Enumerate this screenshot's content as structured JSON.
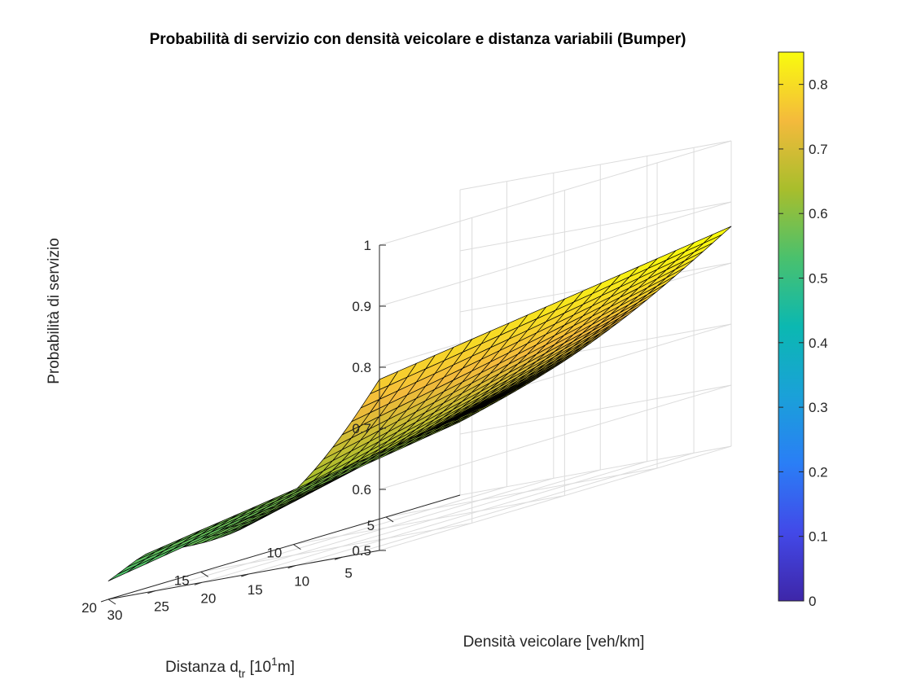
{
  "chart_data": {
    "type": "surface",
    "title": "Probabilità di servizio con densità veicolare e distanza variabili (Bumper)",
    "zlabel": "Probabilità di servizio",
    "xlabel": "Densità veicolare [veh/km]",
    "ylabel": {
      "base": "Distanza d",
      "sub": "tr",
      "mid": " [10",
      "sup": "1",
      "end": "m]"
    },
    "xlim": [
      1,
      30
    ],
    "ylim": [
      1,
      20
    ],
    "zlim": [
      0.5,
      1
    ],
    "xticks": [
      "5",
      "10",
      "15",
      "20",
      "25",
      "30"
    ],
    "xtick_values": [
      5,
      10,
      15,
      20,
      25,
      30
    ],
    "yticks": [
      "5",
      "10",
      "15",
      "20"
    ],
    "ytick_values": [
      5,
      10,
      15,
      20
    ],
    "zticks": [
      "0.5",
      "0.6",
      "0.7",
      "0.8",
      "0.9",
      "1"
    ],
    "ztick_values": [
      0.5,
      0.6,
      0.7,
      0.8,
      0.9,
      1.0
    ],
    "grid": true,
    "colormap": "parula",
    "colorbar": {
      "limits": [
        0,
        0.85
      ],
      "ticks": [
        "0",
        "0.1",
        "0.2",
        "0.3",
        "0.4",
        "0.5",
        "0.6",
        "0.7",
        "0.8"
      ],
      "tick_values": [
        0,
        0.1,
        0.2,
        0.3,
        0.4,
        0.5,
        0.6,
        0.7,
        0.8
      ]
    },
    "grid_size": {
      "density_points": 30,
      "distance_points": 20
    },
    "corner_values": {
      "density_1_distance_1": 0.86,
      "density_30_distance_1": 0.62,
      "density_1_distance_20": 0.78,
      "density_30_distance_20": 0.53
    }
  }
}
